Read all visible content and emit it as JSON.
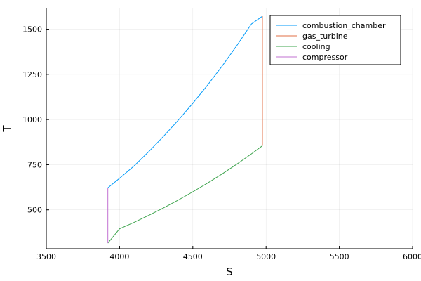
{
  "chart_data": {
    "type": "line",
    "xlabel": "S",
    "ylabel": "T",
    "xlim": [
      3500,
      6000
    ],
    "ylim": [
      285,
      1615
    ],
    "x_ticks": [
      3500,
      4000,
      4500,
      5000,
      5500,
      6000
    ],
    "y_ticks": [
      500,
      750,
      1000,
      1250,
      1500
    ],
    "x_tick_labels": [
      "3500",
      "4000",
      "4500",
      "5000",
      "5500",
      "6000"
    ],
    "y_tick_labels": [
      "500",
      "750",
      "1000",
      "1250",
      "1500"
    ],
    "grid": true,
    "legend_position": "top-right",
    "series": [
      {
        "name": "combustion_chamber",
        "color": "#009AF9",
        "x": [
          3920,
          4000,
          4100,
          4200,
          4300,
          4400,
          4500,
          4600,
          4700,
          4800,
          4900,
          4975
        ],
        "y": [
          622,
          675,
          744,
          823,
          907,
          996,
          1090,
          1190,
          1296,
          1409,
          1529,
          1572
        ]
      },
      {
        "name": "gas_turbine",
        "color": "#E26F46",
        "x": [
          4975,
          4975
        ],
        "y": [
          1572,
          855
        ]
      },
      {
        "name": "cooling",
        "color": "#3DA44D",
        "x": [
          4975,
          4900,
          4800,
          4700,
          4600,
          4500,
          4400,
          4300,
          4200,
          4100,
          4000,
          3920
        ],
        "y": [
          855,
          810,
          753,
          699,
          648,
          600,
          554,
          511,
          470,
          431,
          395,
          316
        ]
      },
      {
        "name": "compressor",
        "color": "#C271D2",
        "x": [
          3920,
          3920
        ],
        "y": [
          316,
          622
        ]
      }
    ]
  }
}
